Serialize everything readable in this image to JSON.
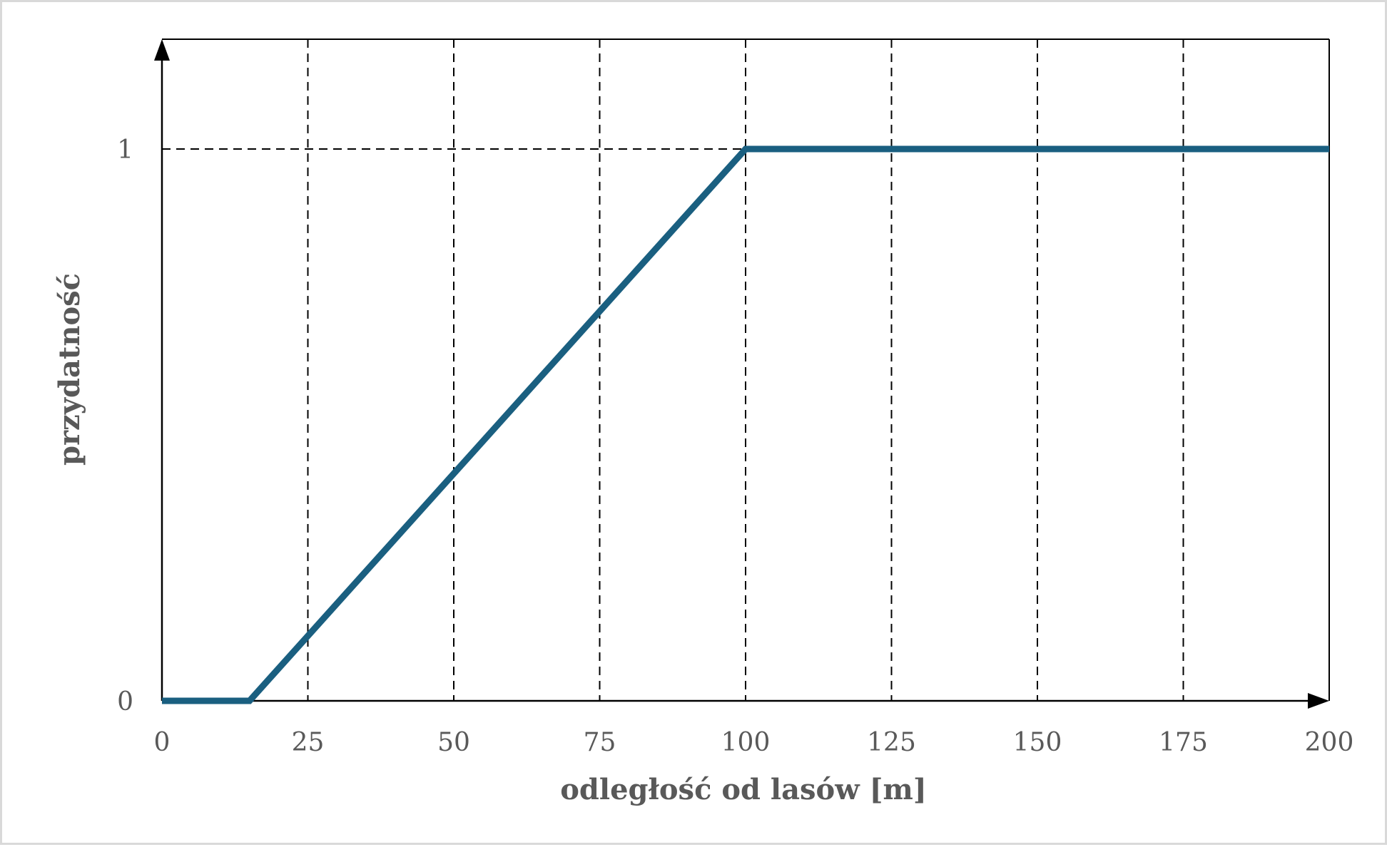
{
  "chart_data": {
    "type": "line",
    "xlabel": "odległość od lasów [m]",
    "ylabel": "przydatność",
    "xlim": [
      0,
      200
    ],
    "ylim": [
      0,
      1
    ],
    "x_ticks": [
      "0",
      "25",
      "50",
      "75",
      "100",
      "125",
      "150",
      "175",
      "200"
    ],
    "y_ticks": [
      "0",
      "1"
    ],
    "grid": "dashed vertical lines at each x tick and a dashed horizontal line at y = 1",
    "series": [
      {
        "color": "#1a5f80",
        "points": [
          [
            0,
            0
          ],
          [
            15,
            0
          ],
          [
            100,
            1
          ],
          [
            200,
            1
          ]
        ]
      }
    ]
  }
}
